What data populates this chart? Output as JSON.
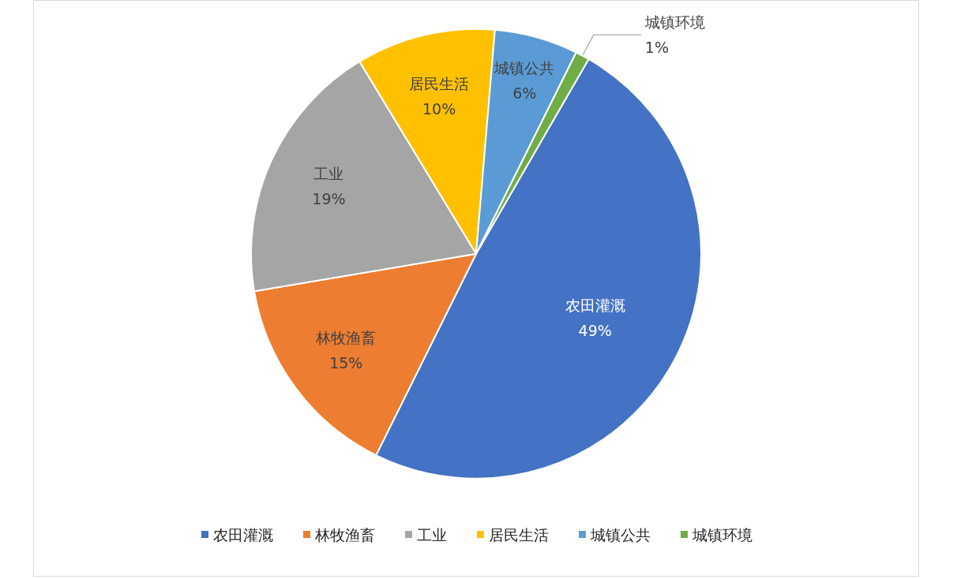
{
  "chart_data": {
    "type": "pie",
    "categories": [
      "农田灌溉",
      "林牧渔畜",
      "工业",
      "居民生活",
      "城镇公共",
      "城镇环境"
    ],
    "values": [
      49,
      15,
      19,
      10,
      6,
      1
    ],
    "colors": [
      "#4472c4",
      "#ed7d31",
      "#a5a5a5",
      "#ffc000",
      "#5b9bd5",
      "#70ad47"
    ],
    "value_labels": [
      "49%",
      "15%",
      "19%",
      "10%",
      "6%",
      "1%"
    ],
    "legend": "bottom"
  }
}
